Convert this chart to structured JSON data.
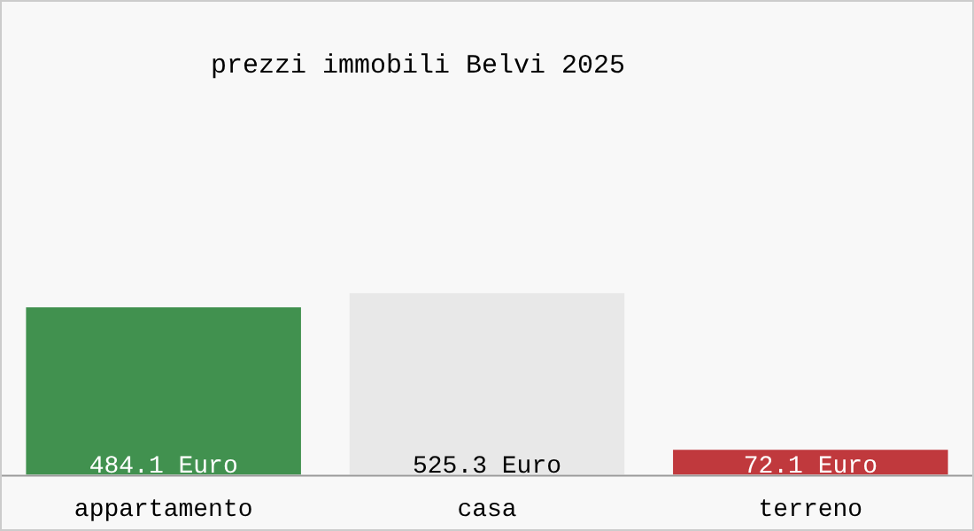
{
  "chart_data": {
    "type": "bar",
    "title": "prezzi immobili Belvi 2025",
    "categories": [
      "appartamento",
      "casa",
      "terreno"
    ],
    "values": [
      484.1,
      525.3,
      72.1
    ],
    "colors": [
      "#41914f",
      "#e8e8e8",
      "#c0393d"
    ],
    "value_labels": [
      "484.1 Euro",
      "525.3 Euro",
      "72.1 Euro"
    ],
    "legend": false,
    "grid": false
  }
}
